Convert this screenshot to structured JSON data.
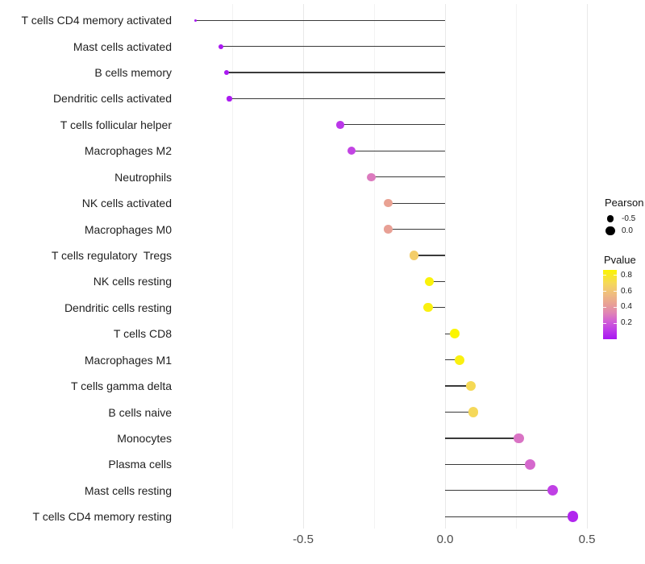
{
  "chart_data": {
    "type": "lollipop",
    "title": "",
    "xlabel": "",
    "ylabel": "",
    "x_axis": {
      "major_ticks": [
        -0.5,
        0.0,
        0.5
      ],
      "major_tick_labels": [
        "-0.5",
        "0.0",
        "0.5"
      ],
      "minor_ticks": [
        -0.75,
        -0.25,
        0.25
      ],
      "range": [
        -0.97,
        0.52
      ]
    },
    "points": [
      {
        "label": "T cells CD4 memory activated",
        "pearson": -0.88,
        "pvalue": 0.005
      },
      {
        "label": "Mast cells activated",
        "pearson": -0.79,
        "pvalue": 0.01
      },
      {
        "label": "B cells memory",
        "pearson": -0.77,
        "pvalue": 0.013
      },
      {
        "label": "Dendritic cells activated",
        "pearson": -0.76,
        "pvalue": 0.015
      },
      {
        "label": "T cells follicular helper",
        "pearson": -0.37,
        "pvalue": 0.1
      },
      {
        "label": "Macrophages M2",
        "pearson": -0.33,
        "pvalue": 0.14
      },
      {
        "label": "Neutrophils",
        "pearson": -0.26,
        "pvalue": 0.3
      },
      {
        "label": "NK cells activated",
        "pearson": -0.2,
        "pvalue": 0.45
      },
      {
        "label": "Macrophages M0",
        "pearson": -0.2,
        "pvalue": 0.44
      },
      {
        "label": "T cells regulatory  Tregs",
        "pearson": -0.11,
        "pvalue": 0.65
      },
      {
        "label": "NK cells resting",
        "pearson": -0.055,
        "pvalue": 0.85
      },
      {
        "label": "Dendritic cells resting",
        "pearson": -0.06,
        "pvalue": 0.84
      },
      {
        "label": "T cells CD8",
        "pearson": 0.035,
        "pvalue": 0.87
      },
      {
        "label": "Macrophages M1",
        "pearson": 0.05,
        "pvalue": 0.84
      },
      {
        "label": "T cells gamma delta",
        "pearson": 0.09,
        "pvalue": 0.71
      },
      {
        "label": "B cells naive",
        "pearson": 0.1,
        "pvalue": 0.7
      },
      {
        "label": "Monocytes",
        "pearson": 0.26,
        "pvalue": 0.28
      },
      {
        "label": "Plasma cells",
        "pearson": 0.3,
        "pvalue": 0.25
      },
      {
        "label": "Mast cells resting",
        "pearson": 0.38,
        "pvalue": 0.13
      },
      {
        "label": "T cells CD4 memory resting",
        "pearson": 0.45,
        "pvalue": 0.05
      }
    ],
    "legend": {
      "size": {
        "title": "Pearson",
        "items": [
          {
            "label": "-0.5",
            "value": -0.5
          },
          {
            "label": "0.0",
            "value": 0.0
          }
        ]
      },
      "color": {
        "title": "Pvalue",
        "ticks": [
          {
            "label": "0.8",
            "value": 0.8
          },
          {
            "label": "0.6",
            "value": 0.6
          },
          {
            "label": "0.4",
            "value": 0.4
          },
          {
            "label": "0.2",
            "value": 0.2
          }
        ],
        "domain": [
          0,
          0.87
        ],
        "gradient_stops": [
          [
            0.0,
            "#A816F2"
          ],
          [
            0.13,
            "#BD3BE8"
          ],
          [
            0.26,
            "#D25FD5"
          ],
          [
            0.38,
            "#E085B4"
          ],
          [
            0.5,
            "#E89F96"
          ],
          [
            0.65,
            "#EFBC80"
          ],
          [
            0.8,
            "#F5D75C"
          ],
          [
            1.0,
            "#FBF500"
          ]
        ]
      }
    },
    "colors": {
      "background": "#FFFFFF",
      "stem": "#3A3A3A",
      "grid_major": "#E9E9E9",
      "grid_minor": "#F3F3F3",
      "axis_text": "#4D4D4D",
      "label_text": "#1F1F1F",
      "legend_dot": "#000000"
    }
  }
}
